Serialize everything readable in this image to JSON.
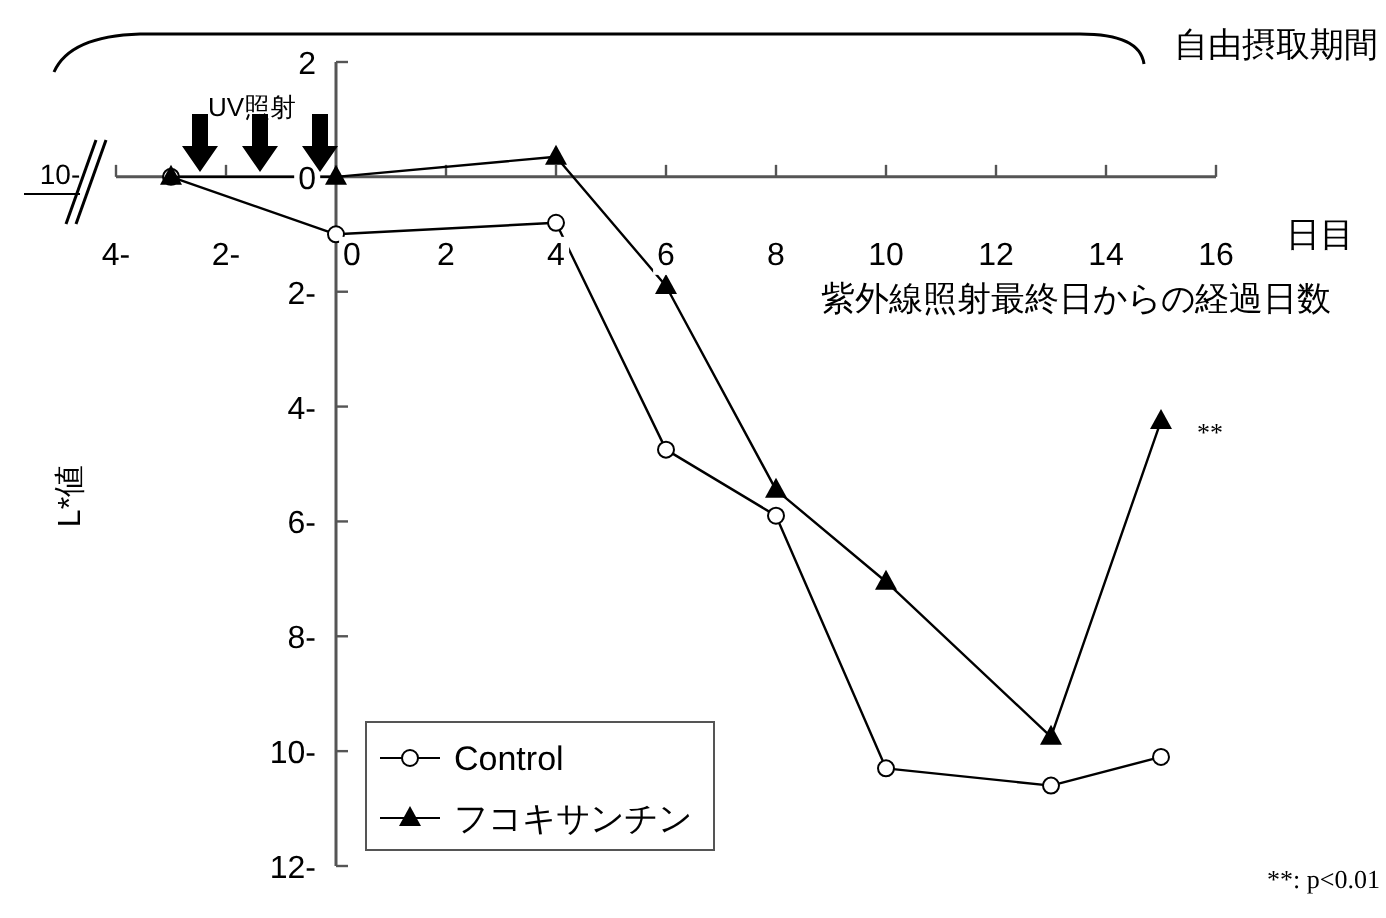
{
  "chart_data": {
    "type": "line",
    "xlabel": "紫外線照射最終日からの経過日数",
    "ylabel": "L*値",
    "xlim": [
      -4,
      16
    ],
    "xticks": [
      {
        "value": -4,
        "label": "4-"
      },
      {
        "value": -2,
        "label": "2-"
      },
      0,
      2,
      4,
      6,
      8,
      10,
      12,
      14,
      16
    ],
    "ylim": [
      -12,
      2
    ],
    "yticks": [
      2,
      0,
      {
        "value": -2,
        "label": "2-"
      },
      {
        "value": -4,
        "label": "4-"
      },
      {
        "value": -6,
        "label": "6-"
      },
      {
        "value": -8,
        "label": "8-"
      },
      {
        "value": -10,
        "label": "10-"
      },
      {
        "value": -12,
        "label": "12-"
      }
    ],
    "grid": false,
    "legend": "bottom left",
    "line_style": "solid",
    "series": [
      {
        "name": "Control",
        "color": "#000000",
        "marker": "circle",
        "x": [
          -3,
          0,
          4,
          6,
          8,
          10,
          13,
          15
        ],
        "values": [
          0,
          -1.0,
          -0.8,
          -4.75,
          -5.9,
          -10.3,
          -10.6,
          -10.1
        ]
      },
      {
        "name": "フコキサンチン",
        "color": "#000000",
        "marker": "triangle",
        "x": [
          -3,
          0,
          4,
          6,
          8,
          10,
          13,
          15
        ],
        "values": [
          0,
          0,
          0.35,
          -1.9,
          -5.45,
          -7.05,
          -9.75,
          -4.25
        ]
      }
    ],
    "annotations": [
      {
        "text": "**",
        "x": 15,
        "y": -4.25
      },
      "UV照射",
      "自由摂取期間",
      "日目",
      "10-",
      "**: p<0.01"
    ]
  }
}
